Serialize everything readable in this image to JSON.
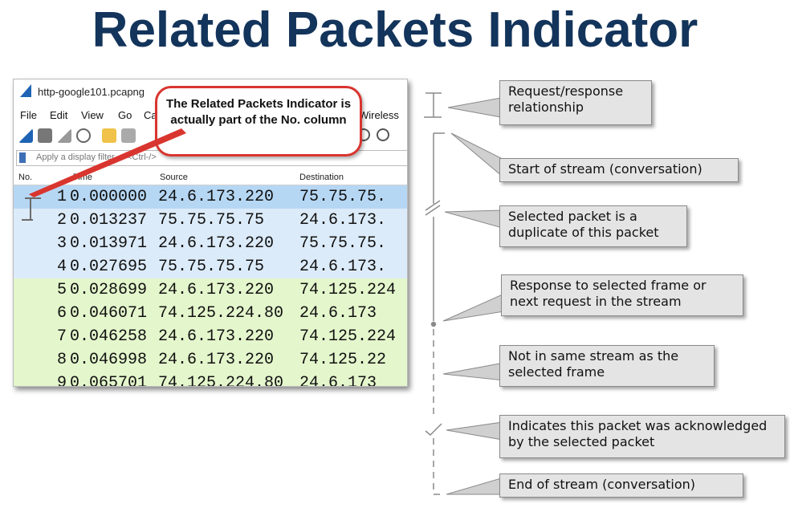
{
  "title": "Related Packets Indicator",
  "window": {
    "filename": "http-google101.pcapng",
    "menu": [
      "File",
      "Edit",
      "View",
      "Go",
      "Ca",
      "Wireless"
    ],
    "filter_placeholder": "Apply a display filter ... <Ctrl-/>",
    "columns": [
      "No.",
      "Time",
      "Source",
      "Destination"
    ],
    "rows": [
      {
        "no": "1",
        "time": "0.000000",
        "src": "24.6.173.220",
        "dst": "75.75.75.",
        "color": "#b6d7f4"
      },
      {
        "no": "2",
        "time": "0.013237",
        "src": "75.75.75.75",
        "dst": "24.6.173.",
        "color": "#dcebf9"
      },
      {
        "no": "3",
        "time": "0.013971",
        "src": "24.6.173.220",
        "dst": "75.75.75.",
        "color": "#dcebf9"
      },
      {
        "no": "4",
        "time": "0.027695",
        "src": "75.75.75.75",
        "dst": "24.6.173.",
        "color": "#dcebf9"
      },
      {
        "no": "5",
        "time": "0.028699",
        "src": "24.6.173.220",
        "dst": "74.125.224",
        "color": "#e4f6cc"
      },
      {
        "no": "6",
        "time": "0.046071",
        "src": "74.125.224.80",
        "dst": "24.6.173",
        "color": "#e4f6cc"
      },
      {
        "no": "7",
        "time": "0.046258",
        "src": "24.6.173.220",
        "dst": "74.125.224",
        "color": "#e4f6cc"
      },
      {
        "no": "8",
        "time": "0.046998",
        "src": "24.6.173.220",
        "dst": "74.125.22",
        "color": "#e4f6cc"
      },
      {
        "no": "9",
        "time": "0.065701",
        "src": "74.125.224.80",
        "dst": "24.6.173",
        "color": "#e4f6cc"
      }
    ]
  },
  "callout": "The Related Packets Indicator is actually part of the No. column",
  "legend": [
    {
      "key": "request-response",
      "text": "Request/response relationship"
    },
    {
      "key": "start-of-stream",
      "text": "Start of stream (conversation)"
    },
    {
      "key": "duplicate",
      "text": "Selected packet is a duplicate of this packet"
    },
    {
      "key": "response",
      "text": "Response to selected frame or next request in the stream"
    },
    {
      "key": "not-in-stream",
      "text": "Not in same stream as the selected frame"
    },
    {
      "key": "acknowledged",
      "text": "Indicates this packet was acknowledged by the selected packet"
    },
    {
      "key": "end-of-stream",
      "text": "End of stream (conversation)"
    }
  ]
}
